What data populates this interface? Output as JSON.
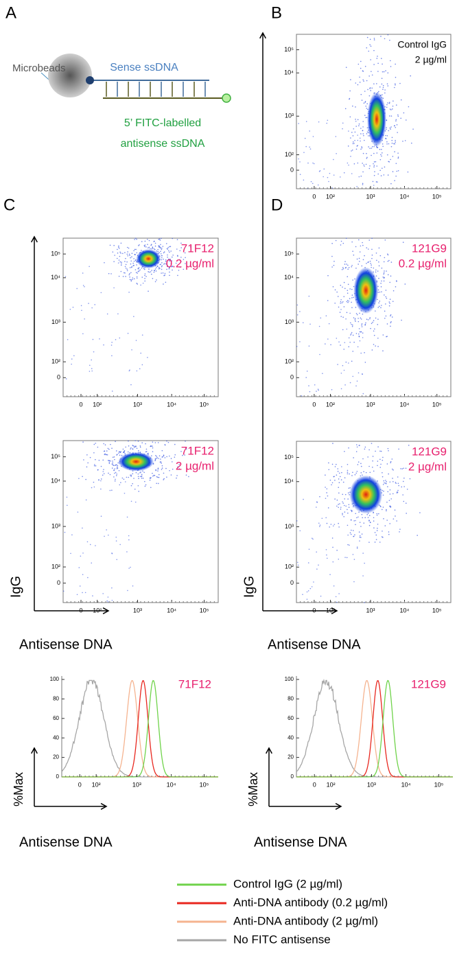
{
  "panels": [
    "A",
    "B",
    "C",
    "D"
  ],
  "diagram": {
    "beads": "Microbeads",
    "sense": "Sense ssDNA",
    "antisense": [
      "5’ FITC-labelled",
      "antisense ssDNA"
    ]
  },
  "plots": [
    {
      "lines": [
        "Control IgG",
        "2 µg/ml"
      ],
      "color": "#000000"
    },
    {
      "lines": [
        "71F12",
        "0.2 µg/ml"
      ],
      "color": "#e8206e"
    },
    {
      "lines": [
        "71F12",
        "2 µg/ml"
      ],
      "color": "#e8206e"
    },
    {
      "lines": [
        "121G9",
        "0.2 µg/ml"
      ],
      "color": "#e8206e"
    },
    {
      "lines": [
        "121G9",
        "2 µg/ml"
      ],
      "color": "#e8206e"
    }
  ],
  "histograms": [
    {
      "label": "71F12",
      "color": "#e8206e"
    },
    {
      "label": "121G9",
      "color": "#e8206e"
    }
  ],
  "log_ticks": [
    "0",
    "10²",
    "10³",
    "10⁴",
    "10⁵"
  ],
  "pct_ticks": [
    "0",
    "20",
    "40",
    "60",
    "80",
    "100"
  ],
  "axis_titles": {
    "x": "Antisense DNA",
    "y": "IgG",
    "pct": "%Max"
  },
  "legend": [
    {
      "name": "Control IgG (2 µg/ml)",
      "color": "#6fd34a"
    },
    {
      "name": "Anti-DNA antibody (0.2 µg/ml)",
      "color": "#e8261e"
    },
    {
      "name": "Anti-DNA antibody (2 µg/ml)",
      "color": "#f5b38f"
    },
    {
      "name": "No FITC antisense",
      "color": "#a6a6a6"
    }
  ]
}
